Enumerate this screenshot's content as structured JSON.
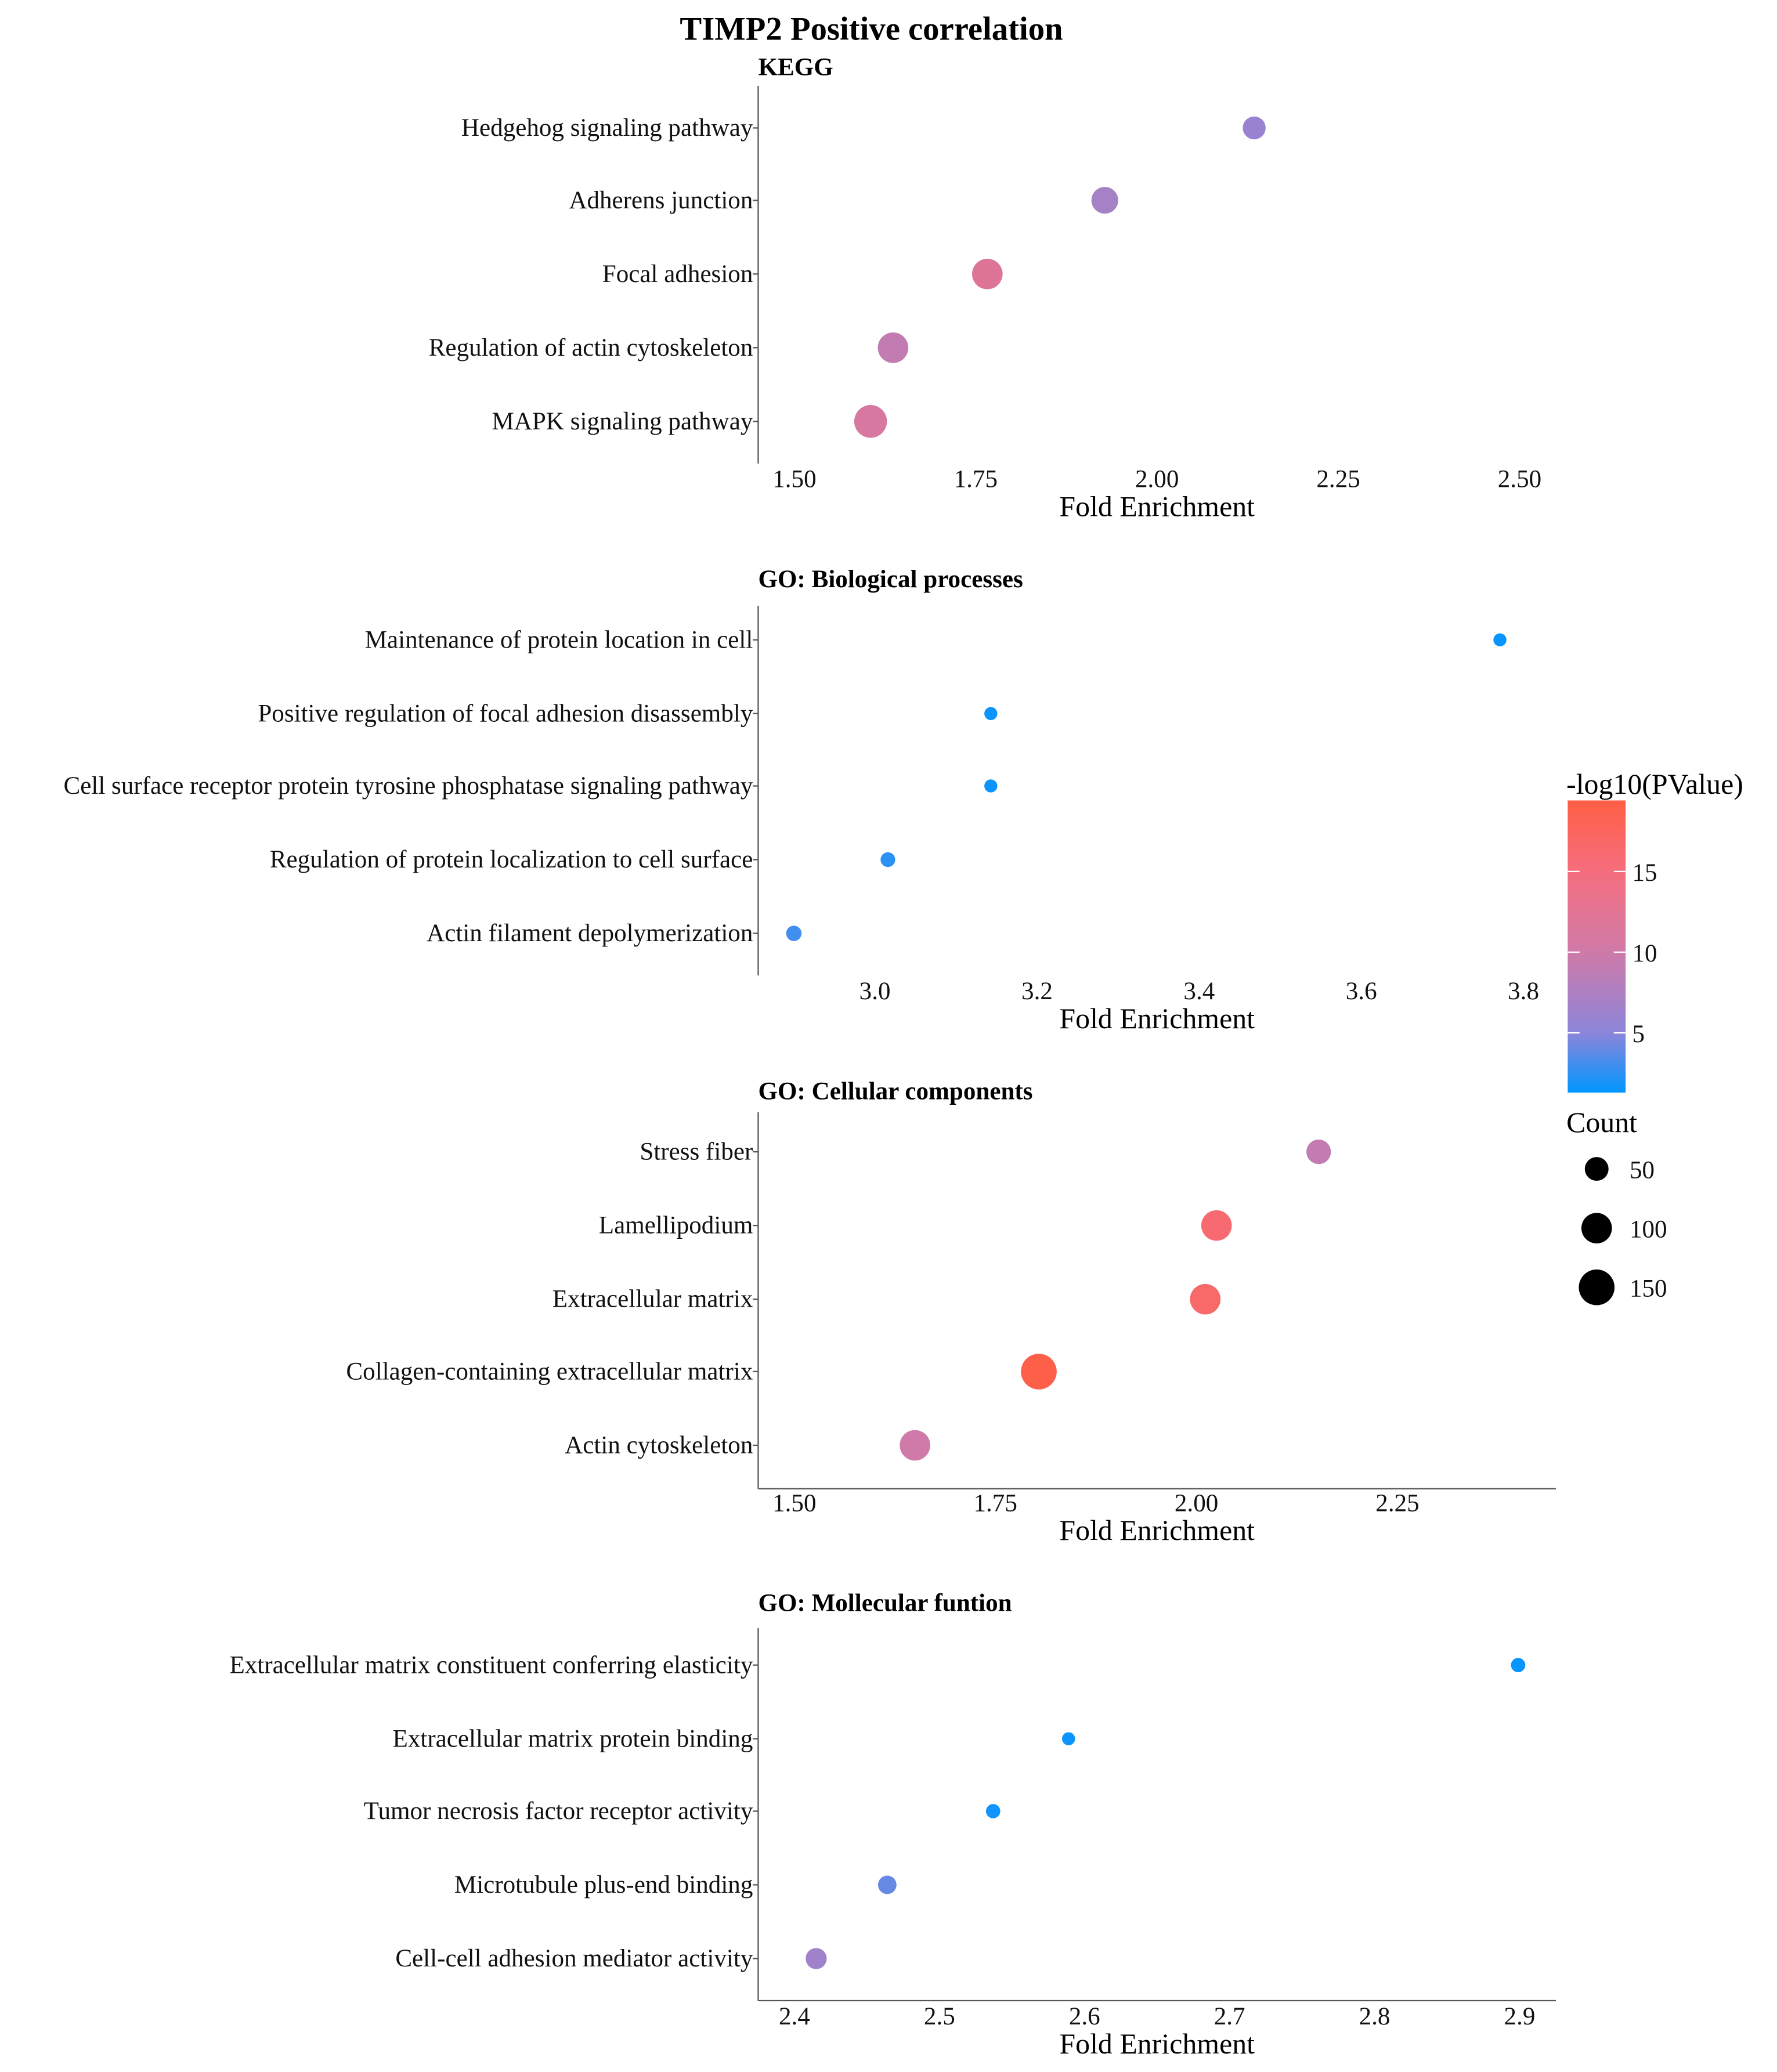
{
  "chart_data": {
    "title": "TIMP2 Positive correlation",
    "type": "scatter",
    "color_legend": {
      "title": "-log10(PValue)",
      "ticks": [
        5,
        10,
        15
      ],
      "range": [
        1.3,
        19.4
      ],
      "colors": [
        "#0096FF",
        "#8C85DA",
        "#CF7AA8",
        "#F56E7E",
        "#FF5E44"
      ]
    },
    "size_legend": {
      "title": "Count",
      "values": [
        50,
        100,
        150
      ],
      "labels": [
        "50",
        "100",
        "150"
      ]
    },
    "panels": [
      {
        "title": "KEGG",
        "xlabel": "Fold Enrichment",
        "xlim": [
          1.45,
          2.55
        ],
        "xticks": [
          1.5,
          1.75,
          2.0,
          2.25,
          2.5
        ],
        "xtick_labels": [
          "1.50",
          "1.75",
          "2.00",
          "2.25",
          "2.50"
        ],
        "terms": [
          {
            "label": "Hedgehog signaling pathway",
            "fold": 2.134,
            "logp": 6,
            "count": 45
          },
          {
            "label": "Adherens junction",
            "fold": 1.928,
            "logp": 7,
            "count": 70
          },
          {
            "label": "Focal adhesion",
            "fold": 1.766,
            "logp": 12,
            "count": 100
          },
          {
            "label": "Regulation of actin cytoskeleton",
            "fold": 1.636,
            "logp": 9,
            "count": 100
          },
          {
            "label": "MAPK signaling pathway",
            "fold": 1.605,
            "logp": 11,
            "count": 120
          }
        ]
      },
      {
        "title": "GO: Biological processes",
        "xlabel": "Fold Enrichment",
        "xlim": [
          2.856,
          3.84
        ],
        "xticks": [
          3.0,
          3.2,
          3.4,
          3.6,
          3.8
        ],
        "xtick_labels": [
          "3.0",
          "3.2",
          "3.4",
          "3.6",
          "3.8"
        ],
        "terms": [
          {
            "label": "Maintenance of protein location in cell",
            "fold": 3.771,
            "logp": 1.5,
            "count": 6
          },
          {
            "label": "Positive regulation of focal adhesion disassembly",
            "fold": 3.143,
            "logp": 1.6,
            "count": 6
          },
          {
            "label": "Cell surface receptor protein tyrosine phosphatase signaling pathway",
            "fold": 3.143,
            "logp": 1.6,
            "count": 6
          },
          {
            "label": "Regulation of protein localization to cell surface",
            "fold": 3.016,
            "logp": 2.5,
            "count": 10
          },
          {
            "label": "Actin filament depolymerization",
            "fold": 2.9,
            "logp": 3,
            "count": 12
          }
        ]
      },
      {
        "title": "GO: Cellular components",
        "xlabel": "Fold Enrichment",
        "xlim": [
          1.455,
          2.447
        ],
        "xticks": [
          1.5,
          1.75,
          2.0,
          2.25
        ],
        "xtick_labels": [
          "1.50",
          "1.75",
          "2.00",
          "2.25"
        ],
        "terms": [
          {
            "label": "Stress fiber",
            "fold": 2.152,
            "logp": 9,
            "count": 55
          },
          {
            "label": "Lamellipodium",
            "fold": 2.025,
            "logp": 16,
            "count": 100
          },
          {
            "label": "Extracellular matrix",
            "fold": 2.011,
            "logp": 16.5,
            "count": 100
          },
          {
            "label": "Collagen-containing extracellular matrix",
            "fold": 1.804,
            "logp": 19,
            "count": 150
          },
          {
            "label": "Actin cytoskeleton",
            "fold": 1.65,
            "logp": 10,
            "count": 100
          }
        ]
      },
      {
        "title": "GO: Mollecular funtion",
        "xlabel": "Fold Enrichment",
        "xlim": [
          2.375,
          2.925
        ],
        "xticks": [
          2.4,
          2.5,
          2.6,
          2.7,
          2.8,
          2.9
        ],
        "xtick_labels": [
          "2.4",
          "2.5",
          "2.6",
          "2.7",
          "2.8",
          "2.9"
        ],
        "terms": [
          {
            "label": "Extracellular matrix constituent conferring elasticity",
            "fold": 2.899,
            "logp": 1.5,
            "count": 9
          },
          {
            "label": "Extracellular matrix protein binding",
            "fold": 2.589,
            "logp": 1.6,
            "count": 6
          },
          {
            "label": "Tumor necrosis factor receptor activity",
            "fold": 2.537,
            "logp": 1.8,
            "count": 9
          },
          {
            "label": "Microtubule plus-end binding",
            "fold": 2.464,
            "logp": 4,
            "count": 23
          },
          {
            "label": "Cell-cell adhesion mediator activity",
            "fold": 2.415,
            "logp": 6.5,
            "count": 35
          }
        ]
      }
    ]
  }
}
